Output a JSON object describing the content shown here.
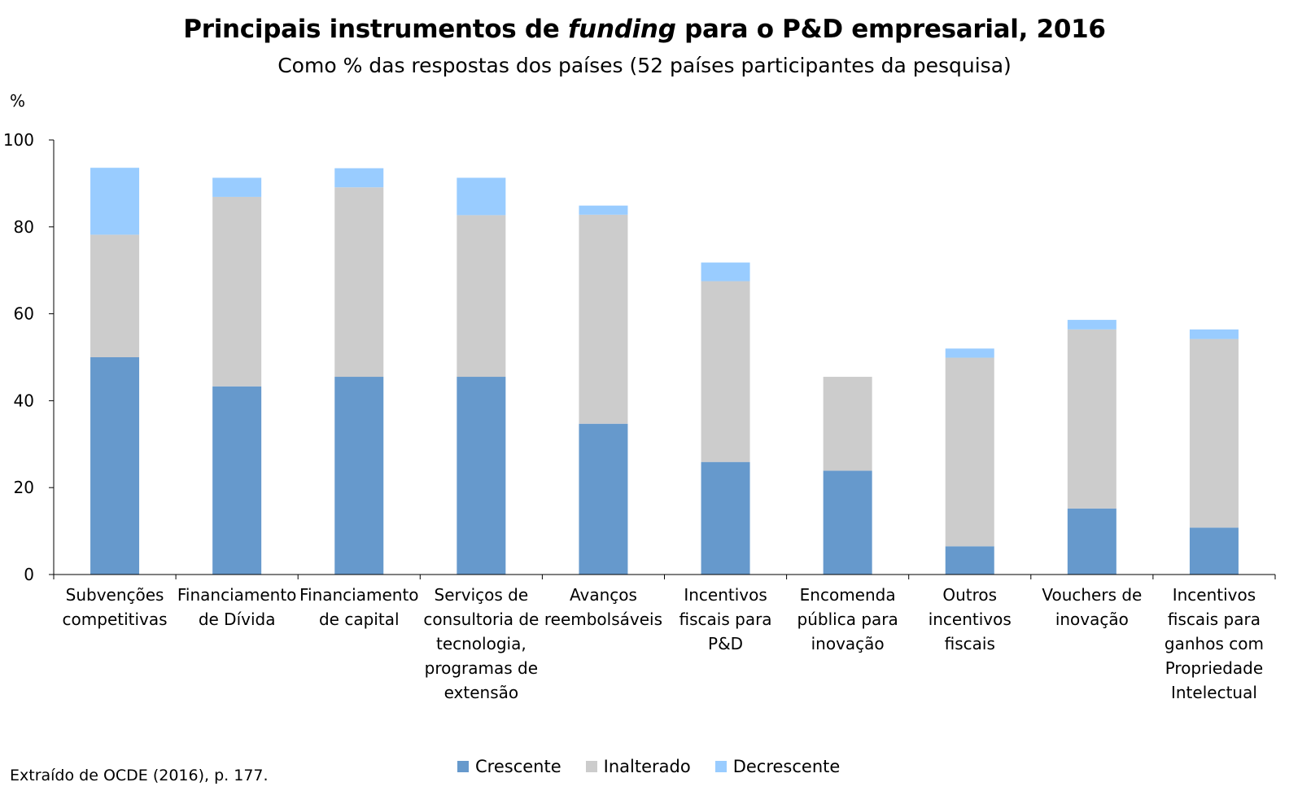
{
  "chart_data": {
    "type": "bar",
    "stacked": true,
    "title_main": "Principais instrumentos de ",
    "title_italic": "funding",
    "title_end": " para o P&D empresarial, 2016",
    "subtitle": "Como % das respostas dos países (52 países participantes da pesquisa)",
    "ylabel": "%",
    "ylim": [
      0,
      100
    ],
    "yticks": [
      0,
      20,
      40,
      60,
      80,
      100
    ],
    "grid": false,
    "legend_position": "bottom",
    "categories": [
      [
        "Subvenções",
        "competitivas"
      ],
      [
        "Financiamento",
        "de Dívida"
      ],
      [
        "Financiamento",
        "de capital"
      ],
      [
        "Serviços de",
        "consultoria de",
        "tecnologia,",
        "programas de",
        "extensão"
      ],
      [
        "Avanços",
        "reembolsáveis"
      ],
      [
        "Incentivos",
        "fiscais para",
        "P&D"
      ],
      [
        "Encomenda",
        "pública para",
        "inovação"
      ],
      [
        "Outros",
        "incentivos",
        "fiscais"
      ],
      [
        "Vouchers de",
        "inovação"
      ],
      [
        "Incentivos",
        "fiscais para",
        "ganhos com",
        "Propriedade",
        "Intelectual"
      ]
    ],
    "series": [
      {
        "name": "Crescente",
        "color": "#6699cc",
        "values": [
          50.0,
          43.3,
          45.5,
          45.5,
          34.7,
          25.9,
          23.9,
          6.5,
          15.2,
          10.8
        ]
      },
      {
        "name": "Inalterado",
        "color": "#cccccc",
        "values": [
          28.2,
          43.6,
          43.6,
          37.2,
          48.1,
          41.6,
          21.6,
          43.4,
          41.2,
          43.4
        ]
      },
      {
        "name": "Decrescente",
        "color": "#99ccff",
        "values": [
          15.4,
          4.4,
          4.4,
          8.6,
          2.1,
          4.3,
          0.0,
          2.1,
          2.2,
          2.2
        ]
      }
    ]
  },
  "source": "Extraído de OCDE (2016), p. 177."
}
